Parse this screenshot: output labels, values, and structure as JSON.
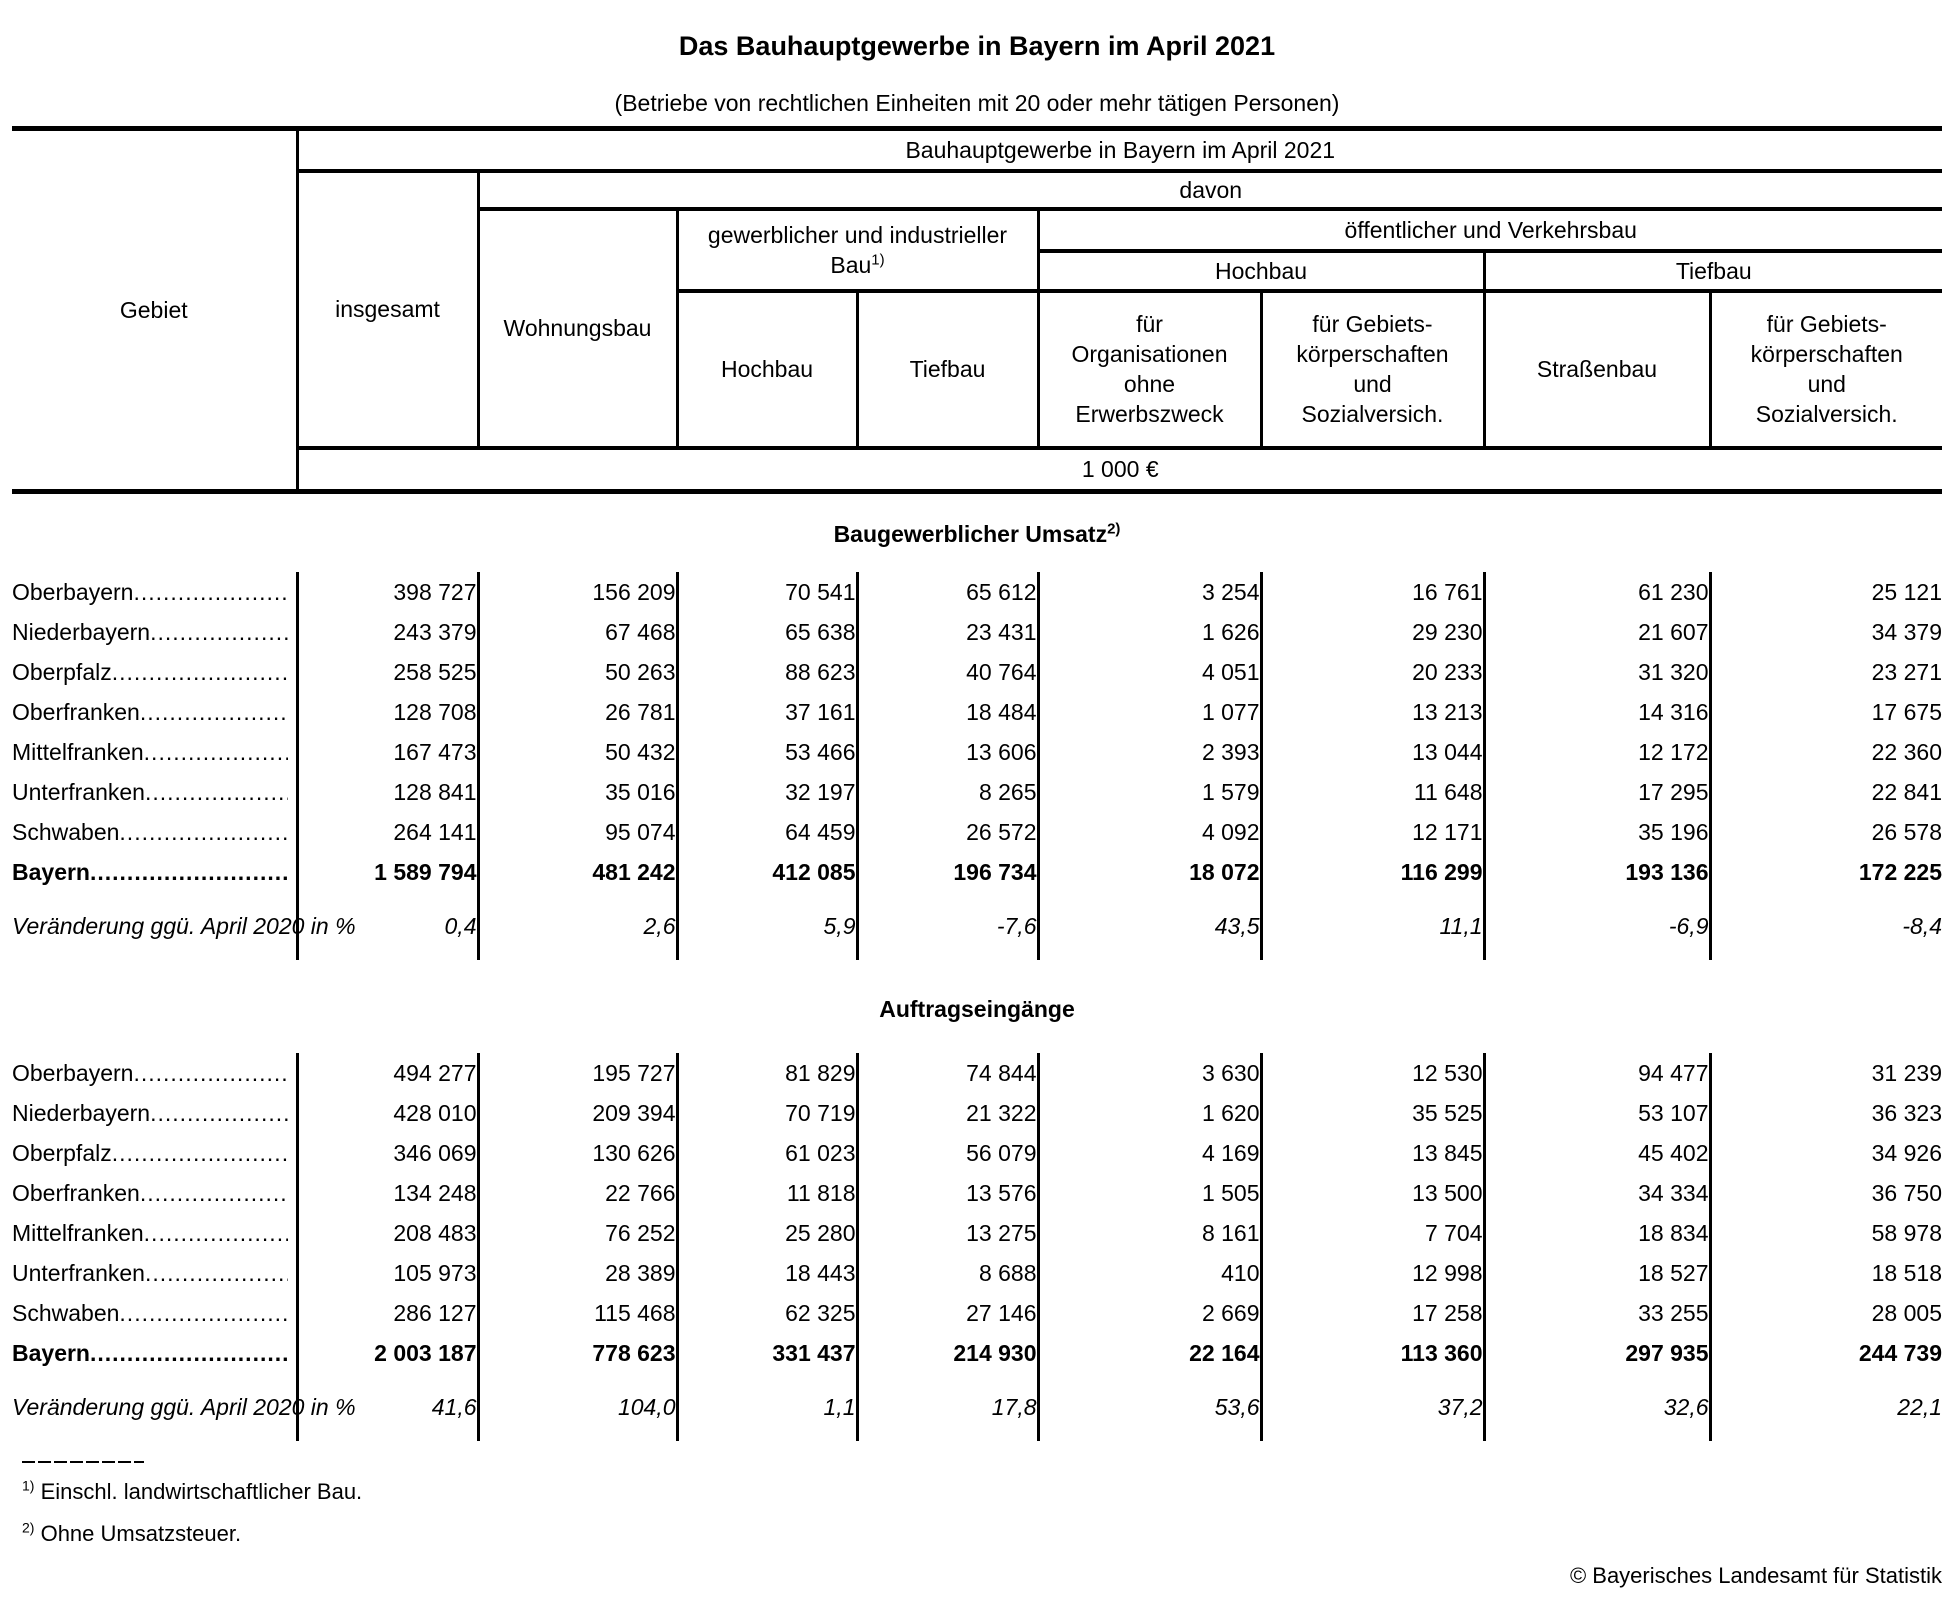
{
  "title": "Das Bauhauptgewerbe in Bayern im April 2021",
  "subtitle": "(Betriebe von rechtlichen Einheiten mit 20 oder mehr tätigen Personen)",
  "table": {
    "header": {
      "gebiet": "Gebiet",
      "group_title": "Bauhauptgewerbe in Bayern im April 2021",
      "davon": "davon",
      "insgesamt": "insgesamt",
      "wohnungsbau": "Wohnungsbau",
      "gew_group_line1": "gewerblicher und industrieller",
      "gew_group_line2": "Bau",
      "gew_group_sup": "1)",
      "oeff_group": "öffentlicher und Verkehrsbau",
      "oeff_hochbau": "Hochbau",
      "oeff_tiefbau": "Tiefbau",
      "gew_hochbau": "Hochbau",
      "gew_tiefbau": "Tiefbau",
      "fuer_org": "für\nOrganisationen\nohne\nErwerbszweck",
      "fuer_gebiets_hochbau": "für Gebiets-\nkörperschaften\nund\nSozialversich.",
      "strassenbau": "Straßenbau",
      "fuer_gebiets_tiefbau": "für Gebiets-\nkörperschaften\nund\nSozialversich.",
      "unit": "1 000 €"
    },
    "sections": [
      {
        "title": "Baugewerblicher Umsatz",
        "title_sup": "2)",
        "rows": [
          {
            "label": "Oberbayern",
            "values": [
              "398 727",
              "156 209",
              "70 541",
              "65 612",
              "3 254",
              "16 761",
              "61 230",
              "25 121"
            ]
          },
          {
            "label": "Niederbayern",
            "values": [
              "243 379",
              "67 468",
              "65 638",
              "23 431",
              "1 626",
              "29 230",
              "21 607",
              "34 379"
            ]
          },
          {
            "label": "Oberpfalz",
            "values": [
              "258 525",
              "50 263",
              "88 623",
              "40 764",
              "4 051",
              "20 233",
              "31 320",
              "23 271"
            ]
          },
          {
            "label": "Oberfranken",
            "values": [
              "128 708",
              "26 781",
              "37 161",
              "18 484",
              "1 077",
              "13 213",
              "14 316",
              "17 675"
            ]
          },
          {
            "label": "Mittelfranken",
            "values": [
              "167 473",
              "50 432",
              "53 466",
              "13 606",
              "2 393",
              "13 044",
              "12 172",
              "22 360"
            ]
          },
          {
            "label": "Unterfranken",
            "values": [
              "128 841",
              "35 016",
              "32 197",
              "8 265",
              "1 579",
              "11 648",
              "17 295",
              "22 841"
            ]
          },
          {
            "label": "Schwaben",
            "values": [
              "264 141",
              "95 074",
              "64 459",
              "26 572",
              "4 092",
              "12 171",
              "35 196",
              "26 578"
            ]
          },
          {
            "label": "Bayern",
            "bold": true,
            "values": [
              "1 589 794",
              "481 242",
              "412 085",
              "196 734",
              "18 072",
              "116 299",
              "193 136",
              "172 225"
            ]
          },
          {
            "label": "Veränderung ggü.\nApril 2020 in %",
            "change": true,
            "values": [
              "0,4",
              "2,6",
              "5,9",
              "-7,6",
              "43,5",
              "11,1",
              "-6,9",
              "-8,4"
            ]
          }
        ]
      },
      {
        "title": "Auftragseingänge",
        "title_sup": "",
        "rows": [
          {
            "label": "Oberbayern",
            "values": [
              "494 277",
              "195 727",
              "81 829",
              "74 844",
              "3 630",
              "12 530",
              "94 477",
              "31 239"
            ]
          },
          {
            "label": "Niederbayern",
            "values": [
              "428 010",
              "209 394",
              "70 719",
              "21 322",
              "1 620",
              "35 525",
              "53 107",
              "36 323"
            ]
          },
          {
            "label": "Oberpfalz",
            "values": [
              "346 069",
              "130 626",
              "61 023",
              "56 079",
              "4 169",
              "13 845",
              "45 402",
              "34 926"
            ]
          },
          {
            "label": "Oberfranken",
            "values": [
              "134 248",
              "22 766",
              "11 818",
              "13 576",
              "1 505",
              "13 500",
              "34 334",
              "36 750"
            ]
          },
          {
            "label": "Mittelfranken",
            "values": [
              "208 483",
              "76 252",
              "25 280",
              "13 275",
              "8 161",
              "7 704",
              "18 834",
              "58 978"
            ]
          },
          {
            "label": "Unterfranken",
            "values": [
              "105 973",
              "28 389",
              "18 443",
              "8 688",
              "410",
              "12 998",
              "18 527",
              "18 518"
            ]
          },
          {
            "label": "Schwaben",
            "values": [
              "286 127",
              "115 468",
              "62 325",
              "27 146",
              "2 669",
              "17 258",
              "33 255",
              "28 005"
            ]
          },
          {
            "label": "Bayern",
            "bold": true,
            "values": [
              "2 003 187",
              "778 623",
              "331 437",
              "214 930",
              "22 164",
              "113 360",
              "297 935",
              "244 739"
            ]
          },
          {
            "label": "Veränderung ggü.\nApril 2020 in %",
            "change": true,
            "values": [
              "41,6",
              "104,0",
              "1,1",
              "17,8",
              "53,6",
              "37,2",
              "32,6",
              "22,1"
            ]
          }
        ]
      }
    ]
  },
  "footnotes": [
    {
      "marker": "1)",
      "text": "Einschl. landwirtschaftlicher Bau."
    },
    {
      "marker": "2)",
      "text": "Ohne Umsatzsteuer."
    }
  ],
  "copyright": "© Bayerisches Landesamt für Statistik"
}
